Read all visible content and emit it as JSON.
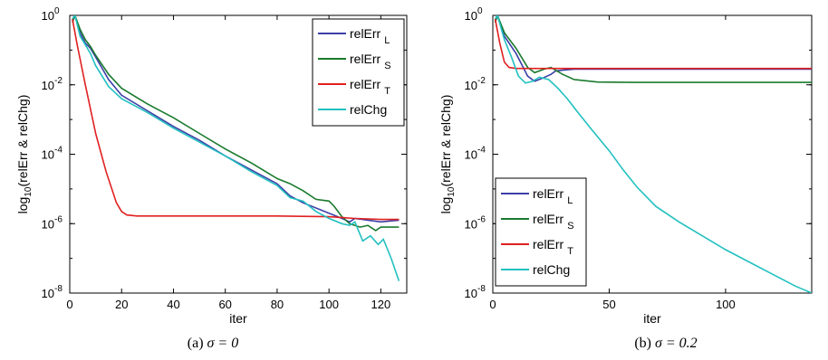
{
  "chart_data": [
    {
      "type": "line",
      "caption_label": "(a)",
      "caption_expr": "σ = 0",
      "xlabel": "iter",
      "ylabel": "log10(relErr & relChg)",
      "ylabel_main": "log",
      "ylabel_sub": "10",
      "ylabel_rest": "(relErr & relChg)",
      "y_scale": "log10",
      "xlim": [
        0,
        130
      ],
      "ylim_exp": [
        -8,
        0
      ],
      "xticks": [
        "0",
        "20",
        "40",
        "60",
        "80",
        "100",
        "120"
      ],
      "xtick_values": [
        0,
        20,
        40,
        60,
        80,
        100,
        120
      ],
      "ytick_exponents": [
        0,
        -2,
        -4,
        -6,
        -8
      ],
      "ytick_base": "10",
      "ytick_labels": [
        "0",
        "-2",
        "-4",
        "-6",
        "-8"
      ],
      "legend_position": "top-right",
      "series": [
        {
          "name": "relErr",
          "sub": "L",
          "color": "#3b3fa6",
          "points": [
            [
              1,
              -0.2
            ],
            [
              2,
              0.0
            ],
            [
              4,
              -0.5
            ],
            [
              6,
              -0.8
            ],
            [
              8,
              -0.95
            ],
            [
              10,
              -1.2
            ],
            [
              15,
              -1.85
            ],
            [
              20,
              -2.3
            ],
            [
              30,
              -2.75
            ],
            [
              40,
              -3.2
            ],
            [
              50,
              -3.6
            ],
            [
              60,
              -4.05
            ],
            [
              70,
              -4.45
            ],
            [
              80,
              -4.85
            ],
            [
              85,
              -5.2
            ],
            [
              90,
              -5.4
            ],
            [
              100,
              -5.7
            ],
            [
              105,
              -5.85
            ],
            [
              108,
              -5.95
            ],
            [
              110,
              -5.85
            ],
            [
              115,
              -5.9
            ],
            [
              120,
              -5.95
            ],
            [
              127,
              -5.9
            ]
          ]
        },
        {
          "name": "relErr",
          "sub": "S",
          "color": "#1a7a2e",
          "points": [
            [
              1,
              -0.2
            ],
            [
              2,
              0.0
            ],
            [
              4,
              -0.4
            ],
            [
              6,
              -0.7
            ],
            [
              8,
              -0.9
            ],
            [
              10,
              -1.15
            ],
            [
              15,
              -1.7
            ],
            [
              20,
              -2.1
            ],
            [
              30,
              -2.55
            ],
            [
              40,
              -2.95
            ],
            [
              50,
              -3.4
            ],
            [
              60,
              -3.85
            ],
            [
              70,
              -4.25
            ],
            [
              80,
              -4.7
            ],
            [
              85,
              -4.85
            ],
            [
              90,
              -5.05
            ],
            [
              95,
              -5.3
            ],
            [
              100,
              -5.35
            ],
            [
              102,
              -5.5
            ],
            [
              105,
              -5.8
            ],
            [
              108,
              -6.0
            ],
            [
              112,
              -6.1
            ],
            [
              115,
              -6.05
            ],
            [
              118,
              -6.2
            ],
            [
              120,
              -6.1
            ],
            [
              127,
              -6.1
            ]
          ]
        },
        {
          "name": "relErr",
          "sub": "T",
          "color": "#e02020",
          "points": [
            [
              1,
              -0.1
            ],
            [
              3,
              -0.9
            ],
            [
              6,
              -2.0
            ],
            [
              10,
              -3.4
            ],
            [
              14,
              -4.5
            ],
            [
              18,
              -5.4
            ],
            [
              20,
              -5.65
            ],
            [
              22,
              -5.75
            ],
            [
              26,
              -5.78
            ],
            [
              40,
              -5.78
            ],
            [
              60,
              -5.78
            ],
            [
              80,
              -5.78
            ],
            [
              100,
              -5.8
            ],
            [
              110,
              -5.85
            ],
            [
              120,
              -5.88
            ],
            [
              127,
              -5.88
            ]
          ]
        },
        {
          "name": "relChg",
          "sub": "",
          "color": "#22c0c0",
          "points": [
            [
              1,
              -0.1
            ],
            [
              2,
              0.0
            ],
            [
              4,
              -0.6
            ],
            [
              6,
              -0.85
            ],
            [
              8,
              -1.1
            ],
            [
              10,
              -1.45
            ],
            [
              15,
              -2.05
            ],
            [
              20,
              -2.4
            ],
            [
              30,
              -2.8
            ],
            [
              40,
              -3.25
            ],
            [
              50,
              -3.65
            ],
            [
              60,
              -4.05
            ],
            [
              70,
              -4.5
            ],
            [
              80,
              -4.9
            ],
            [
              85,
              -5.25
            ],
            [
              90,
              -5.35
            ],
            [
              95,
              -5.65
            ],
            [
              100,
              -5.85
            ],
            [
              105,
              -6.0
            ],
            [
              108,
              -6.05
            ],
            [
              110,
              -5.95
            ],
            [
              113,
              -6.5
            ],
            [
              116,
              -6.35
            ],
            [
              119,
              -6.6
            ],
            [
              121,
              -6.45
            ],
            [
              124,
              -7.0
            ],
            [
              127,
              -7.65
            ]
          ]
        }
      ]
    },
    {
      "type": "line",
      "caption_label": "(b)",
      "caption_expr": "σ = 0.2",
      "xlabel": "iter",
      "ylabel": "log10(relErr & relChg)",
      "ylabel_main": "log",
      "ylabel_sub": "10",
      "ylabel_rest": "(relErr & relChg)",
      "y_scale": "log10",
      "xlim": [
        0,
        137
      ],
      "ylim_exp": [
        -8,
        0
      ],
      "xticks": [
        "0",
        "50",
        "100"
      ],
      "xtick_values": [
        0,
        50,
        100
      ],
      "ytick_exponents": [
        0,
        -2,
        -4,
        -6,
        -8
      ],
      "ytick_base": "10",
      "ytick_labels": [
        "0",
        "-2",
        "-4",
        "-6",
        "-8"
      ],
      "legend_position": "bottom-left",
      "series": [
        {
          "name": "relErr",
          "sub": "L",
          "color": "#3b3fa6",
          "points": [
            [
              1,
              -0.2
            ],
            [
              2,
              0.0
            ],
            [
              5,
              -0.6
            ],
            [
              10,
              -1.1
            ],
            [
              15,
              -1.75
            ],
            [
              18,
              -1.9
            ],
            [
              21,
              -1.82
            ],
            [
              25,
              -1.7
            ],
            [
              27,
              -1.6
            ],
            [
              30,
              -1.58
            ],
            [
              35,
              -1.55
            ],
            [
              40,
              -1.55
            ],
            [
              137,
              -1.55
            ]
          ]
        },
        {
          "name": "relErr",
          "sub": "S",
          "color": "#1a7a2e",
          "points": [
            [
              1,
              -0.2
            ],
            [
              2,
              0.0
            ],
            [
              5,
              -0.5
            ],
            [
              10,
              -0.95
            ],
            [
              15,
              -1.5
            ],
            [
              18,
              -1.65
            ],
            [
              22,
              -1.55
            ],
            [
              25,
              -1.5
            ],
            [
              30,
              -1.7
            ],
            [
              35,
              -1.85
            ],
            [
              45,
              -1.92
            ],
            [
              60,
              -1.93
            ],
            [
              137,
              -1.93
            ]
          ]
        },
        {
          "name": "relErr",
          "sub": "T",
          "color": "#e02020",
          "points": [
            [
              1,
              -0.1
            ],
            [
              3,
              -0.8
            ],
            [
              5,
              -1.35
            ],
            [
              7,
              -1.5
            ],
            [
              10,
              -1.53
            ],
            [
              20,
              -1.53
            ],
            [
              60,
              -1.53
            ],
            [
              137,
              -1.53
            ]
          ]
        },
        {
          "name": "relChg",
          "sub": "",
          "color": "#22c0c0",
          "points": [
            [
              1,
              -0.1
            ],
            [
              2,
              0.0
            ],
            [
              5,
              -0.7
            ],
            [
              8,
              -1.2
            ],
            [
              11,
              -1.75
            ],
            [
              14,
              -1.95
            ],
            [
              17,
              -1.9
            ],
            [
              20,
              -1.78
            ],
            [
              24,
              -1.85
            ],
            [
              28,
              -2.1
            ],
            [
              32,
              -2.4
            ],
            [
              36,
              -2.75
            ],
            [
              42,
              -3.25
            ],
            [
              50,
              -3.9
            ],
            [
              56,
              -4.45
            ],
            [
              62,
              -4.95
            ],
            [
              70,
              -5.5
            ],
            [
              80,
              -5.95
            ],
            [
              90,
              -6.35
            ],
            [
              100,
              -6.75
            ],
            [
              110,
              -7.1
            ],
            [
              120,
              -7.45
            ],
            [
              130,
              -7.8
            ],
            [
              137,
              -8.0
            ]
          ]
        }
      ]
    }
  ]
}
